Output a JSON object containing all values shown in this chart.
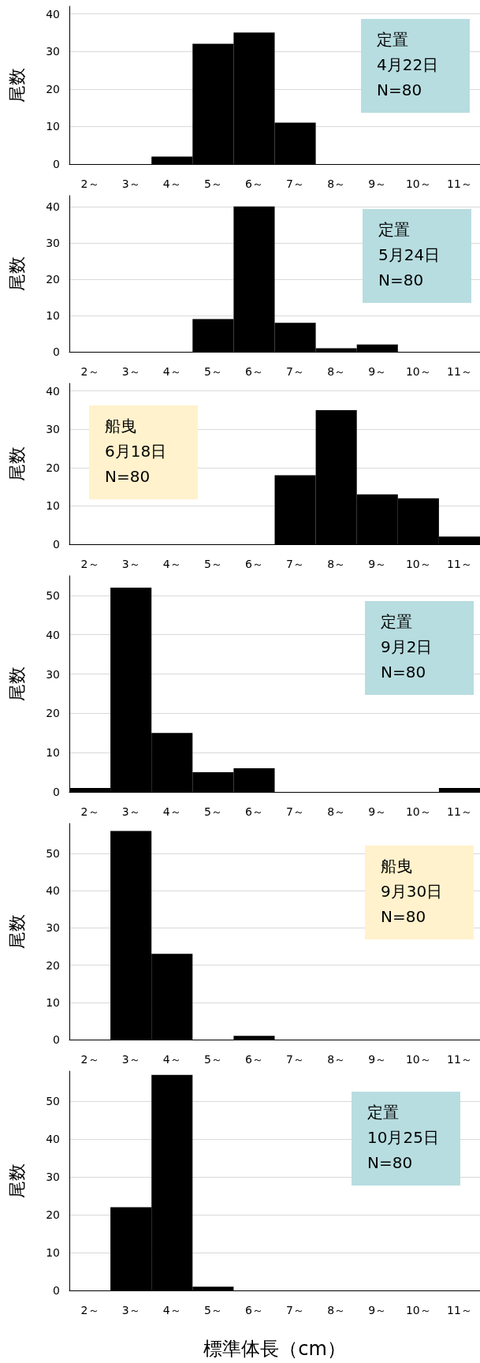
{
  "chart_data": [
    {
      "type": "bar",
      "categories": [
        "2～",
        "3～",
        "4～",
        "5～",
        "6～",
        "7～",
        "8～",
        "9～",
        "10～",
        "11～"
      ],
      "values": [
        0,
        0,
        2,
        32,
        35,
        11,
        0,
        0,
        0,
        0
      ],
      "color": "#000000",
      "ylabel": "尾数",
      "ylim": [
        0,
        42
      ],
      "yticks": [
        0,
        10,
        20,
        30,
        40
      ],
      "grid": "y",
      "annotations": [
        "定置\n4月22日\nN=80"
      ]
    },
    {
      "type": "bar",
      "categories": [
        "2～",
        "3～",
        "4～",
        "5～",
        "6～",
        "7～",
        "8～",
        "9～",
        "10～",
        "11～"
      ],
      "values": [
        0,
        0,
        0,
        9,
        40,
        8,
        1,
        2,
        0,
        0
      ],
      "color": "#000000",
      "ylabel": "尾数",
      "ylim": [
        0,
        43
      ],
      "yticks": [
        0,
        10,
        20,
        30,
        40
      ],
      "grid": "y",
      "annotations": [
        "定置\n5月24日\nN=80"
      ]
    },
    {
      "type": "bar",
      "categories": [
        "2～",
        "3～",
        "4～",
        "5～",
        "6～",
        "7～",
        "8～",
        "9～",
        "10～",
        "11～"
      ],
      "values": [
        0,
        0,
        0,
        0,
        0,
        18,
        35,
        13,
        12,
        2
      ],
      "color": "#000000",
      "ylabel": "尾数",
      "ylim": [
        0,
        42
      ],
      "yticks": [
        0,
        10,
        20,
        30,
        40
      ],
      "grid": "y",
      "annotations": [
        "船曳\n6月18日\nN=80"
      ]
    },
    {
      "type": "bar",
      "categories": [
        "2～",
        "3～",
        "4～",
        "5～",
        "6～",
        "7～",
        "8～",
        "9～",
        "10～",
        "11～"
      ],
      "values": [
        1,
        52,
        15,
        5,
        6,
        0,
        0,
        0,
        0,
        1
      ],
      "color": "#000000",
      "ylabel": "尾数",
      "ylim": [
        0,
        55
      ],
      "yticks": [
        0,
        10,
        20,
        30,
        40,
        50
      ],
      "grid": "y",
      "annotations": [
        "定置\n9月2日\nN=80"
      ]
    },
    {
      "type": "bar",
      "categories": [
        "2～",
        "3～",
        "4～",
        "5～",
        "6～",
        "7～",
        "8～",
        "9～",
        "10～",
        "11～"
      ],
      "values": [
        0,
        56,
        23,
        0,
        1,
        0,
        0,
        0,
        0,
        0
      ],
      "color": "#000000",
      "ylabel": "尾数",
      "ylim": [
        0,
        58
      ],
      "yticks": [
        0,
        10,
        20,
        30,
        40,
        50
      ],
      "grid": "y",
      "annotations": [
        "船曳\n9月30日\nN=80"
      ]
    },
    {
      "type": "bar",
      "categories": [
        "2～",
        "3～",
        "4～",
        "5～",
        "6～",
        "7～",
        "8～",
        "9～",
        "10～",
        "11～"
      ],
      "values": [
        0,
        22,
        57,
        1,
        0,
        0,
        0,
        0,
        0,
        0
      ],
      "color": "#000000",
      "ylabel": "尾数",
      "xlabel": "標準体長（cm）",
      "ylim": [
        0,
        58
      ],
      "yticks": [
        0,
        10,
        20,
        30,
        40,
        50
      ],
      "grid": "y",
      "annotations": [
        "定置\n10月25日\nN=80"
      ]
    }
  ]
}
